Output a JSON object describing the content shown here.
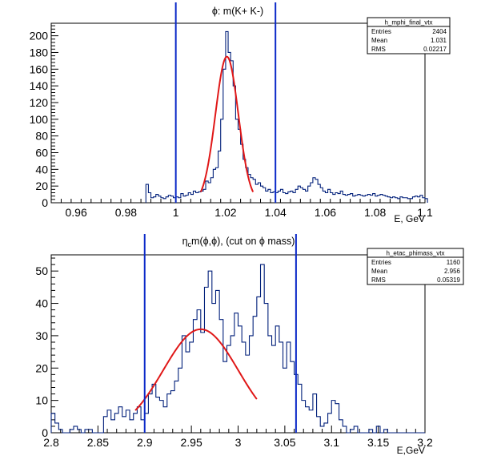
{
  "chart_data": [
    {
      "type": "histogram",
      "title": "ϕ: m(K+ K-)",
      "xlabel": "E, GeV",
      "ylabel": "",
      "xlim": [
        0.95,
        1.1
      ],
      "ylim": [
        0,
        215
      ],
      "xticks": [
        0.96,
        0.98,
        1.0,
        1.02,
        1.04,
        1.06,
        1.08,
        1.1
      ],
      "xtick_labels": [
        "0.96",
        "0.98",
        "1",
        "1.02",
        "1.04",
        "1.06",
        "1.08",
        "1.1"
      ],
      "yticks": [
        0,
        20,
        40,
        60,
        80,
        100,
        120,
        140,
        160,
        180,
        200
      ],
      "ytick_labels": [
        "0",
        "20",
        "40",
        "60",
        "80",
        "100",
        "120",
        "140",
        "160",
        "180",
        "200"
      ],
      "bin_width": 0.001,
      "bins_start": 0.988,
      "bin_values": [
        22,
        12,
        6,
        7,
        10,
        8,
        6,
        5,
        7,
        9,
        8,
        6,
        7,
        6,
        11,
        8,
        9,
        12,
        10,
        14,
        12,
        13,
        14,
        16,
        26,
        24,
        30,
        40,
        42,
        62,
        100,
        160,
        205,
        180,
        170,
        140,
        100,
        88,
        70,
        52,
        42,
        34,
        30,
        28,
        22,
        24,
        20,
        18,
        14,
        16,
        12,
        13,
        12,
        14,
        16,
        12,
        11,
        13,
        14,
        12,
        16,
        20,
        18,
        16,
        14,
        20,
        24,
        30,
        28,
        22,
        18,
        14,
        12,
        16,
        12,
        10,
        12,
        11,
        14,
        10,
        9,
        10,
        11,
        8,
        9,
        10,
        9,
        8,
        9,
        10,
        9,
        11,
        8,
        9,
        10,
        9,
        8,
        7,
        6,
        7,
        6,
        5,
        7,
        6,
        6,
        5,
        5,
        7,
        8,
        7,
        9,
        6,
        5
      ],
      "fit": {
        "type": "gaussian",
        "amplitude": 175,
        "mean": 1.0205,
        "sigma": 0.0046,
        "xrange": [
          1.01,
          1.031
        ],
        "color": "#e01818"
      },
      "cut_lines": [
        1.0,
        1.04
      ],
      "cut_line_color": "#0a28c8",
      "stats": {
        "name": "h_mphi_final_vtx",
        "rows": [
          [
            "Entries",
            "2404"
          ],
          [
            "Mean",
            "1.031"
          ],
          [
            "RMS",
            "0.02217"
          ]
        ]
      }
    },
    {
      "type": "histogram",
      "title": "η c m(ϕ,ϕ), (cut on ϕ mass)",
      "title_parts": {
        "eta": "η",
        "sub": "c",
        "rest1": "m(ϕ,ϕ), (cut on ",
        "phi": "ϕ",
        "rest2": " mass)"
      },
      "xlabel": "E,GeV",
      "ylabel": "",
      "xlim": [
        2.8,
        3.2
      ],
      "ylim": [
        0,
        55
      ],
      "xticks": [
        2.8,
        2.85,
        2.9,
        2.95,
        3.0,
        3.05,
        3.1,
        3.15,
        3.2
      ],
      "xtick_labels": [
        "2.8",
        "2.85",
        "2.9",
        "2.95",
        "3",
        "3.05",
        "3.1",
        "3.15",
        "3.2"
      ],
      "yticks": [
        0,
        10,
        20,
        30,
        40,
        50
      ],
      "ytick_labels": [
        "0",
        "10",
        "20",
        "30",
        "40",
        "50"
      ],
      "bin_width": 0.004,
      "bins_start": 2.8,
      "bin_values": [
        6,
        3,
        1,
        0,
        0,
        1,
        2,
        1,
        0,
        1,
        1,
        0,
        0,
        0,
        5,
        7,
        4,
        6,
        8,
        5,
        7,
        4,
        6,
        8,
        4,
        6,
        12,
        15,
        11,
        10,
        8,
        12,
        13,
        16,
        20,
        30,
        25,
        28,
        35,
        38,
        31,
        45,
        50,
        40,
        44,
        35,
        22,
        27,
        30,
        37,
        33,
        28,
        24,
        30,
        36,
        42,
        52,
        40,
        30,
        27,
        33,
        28,
        20,
        28,
        22,
        18,
        15,
        10,
        8,
        7,
        12,
        5,
        2,
        3,
        6,
        10,
        9,
        4,
        2,
        0,
        1,
        2,
        0,
        0,
        0,
        1,
        0,
        2,
        0,
        1,
        0,
        0,
        0,
        0,
        0,
        0,
        0,
        0,
        0,
        0
      ],
      "fit": {
        "type": "gaussian",
        "amplitude": 32,
        "mean": 2.96,
        "sigma": 0.04,
        "xrange": [
          2.89,
          3.02
        ],
        "color": "#e01818"
      },
      "cut_lines": [
        2.9,
        3.062
      ],
      "cut_line_color": "#0a28c8",
      "stats": {
        "name": "h_etac_phimass_vtx",
        "rows": [
          [
            "Entries",
            "1160"
          ],
          [
            "Mean",
            "2.956"
          ],
          [
            "RMS",
            "0.05319"
          ]
        ]
      }
    }
  ]
}
